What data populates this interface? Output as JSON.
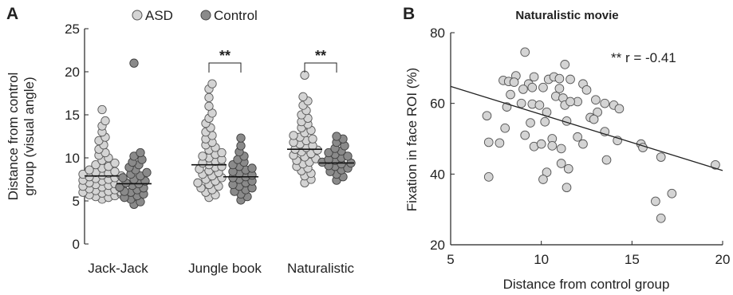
{
  "chart_data": [
    {
      "panel_label": "A",
      "type": "scatter",
      "subtype": "beeswarm",
      "ylabel_lines": [
        "Distance from control",
        "group (visual angle)"
      ],
      "ylim": [
        0,
        25
      ],
      "yticks": [
        0,
        5,
        10,
        15,
        20,
        25
      ],
      "categories": [
        "Jack-Jack",
        "Jungle book",
        "Naturalistic"
      ],
      "legend": {
        "position": "top",
        "entries": [
          {
            "label": "ASD",
            "color": "#d4d4d4"
          },
          {
            "label": "Control",
            "color": "#8a8a8a"
          }
        ]
      },
      "significance": [
        {
          "category": "Jungle book",
          "label": "**"
        },
        {
          "category": "Naturalistic",
          "label": "**"
        }
      ],
      "series": [
        {
          "name": "ASD",
          "color": "#d4d4d4",
          "median": [
            7.9,
            9.2,
            11.0
          ],
          "values": [
            [
              5.2,
              5.4,
              5.5,
              5.6,
              5.7,
              5.8,
              5.9,
              6.0,
              6.0,
              6.1,
              6.2,
              6.3,
              6.4,
              6.5,
              6.6,
              6.7,
              6.8,
              6.9,
              7.0,
              7.1,
              7.2,
              7.3,
              7.4,
              7.5,
              7.6,
              7.7,
              7.8,
              7.9,
              8.0,
              8.1,
              8.2,
              8.3,
              8.4,
              8.6,
              8.8,
              9.0,
              9.2,
              9.4,
              9.7,
              10.0,
              10.3,
              10.6,
              11.0,
              11.5,
              12.0,
              12.4,
              13.0,
              13.7,
              14.3,
              15.6
            ],
            [
              5.4,
              5.7,
              6.0,
              6.3,
              6.5,
              6.7,
              6.9,
              7.1,
              7.3,
              7.5,
              7.7,
              7.9,
              8.1,
              8.3,
              8.5,
              8.7,
              8.9,
              9.0,
              9.2,
              9.4,
              9.6,
              9.8,
              10.0,
              10.2,
              10.4,
              10.6,
              10.9,
              11.2,
              11.5,
              11.8,
              12.2,
              12.6,
              13.0,
              13.5,
              14.0,
              14.6,
              15.2,
              16.0,
              17.0,
              18.0,
              18.6
            ],
            [
              7.1,
              7.5,
              7.9,
              8.2,
              8.5,
              8.8,
              9.0,
              9.3,
              9.5,
              9.7,
              9.9,
              10.1,
              10.3,
              10.5,
              10.7,
              10.9,
              11.0,
              11.2,
              11.4,
              11.6,
              11.8,
              12.0,
              12.2,
              12.4,
              12.6,
              12.9,
              13.2,
              13.5,
              13.9,
              14.2,
              14.6,
              15.0,
              15.5,
              16.1,
              16.6,
              17.1,
              19.6
            ]
          ]
        },
        {
          "name": "Control",
          "color": "#8a8a8a",
          "median": [
            7.0,
            7.8,
            9.4
          ],
          "values": [
            [
              4.6,
              4.9,
              5.2,
              5.4,
              5.6,
              5.8,
              6.0,
              6.1,
              6.3,
              6.5,
              6.6,
              6.8,
              7.0,
              7.1,
              7.3,
              7.5,
              7.7,
              7.9,
              8.1,
              8.3,
              8.6,
              8.9,
              9.2,
              9.5,
              9.8,
              10.2,
              10.6,
              21.0
            ],
            [
              5.1,
              5.5,
              5.8,
              6.1,
              6.3,
              6.5,
              6.7,
              6.9,
              7.1,
              7.3,
              7.5,
              7.7,
              7.8,
              8.0,
              8.2,
              8.4,
              8.6,
              8.8,
              9.0,
              9.2,
              9.5,
              9.8,
              10.2,
              10.7,
              11.4,
              12.3
            ],
            [
              7.4,
              7.8,
              8.1,
              8.4,
              8.6,
              8.8,
              9.0,
              9.1,
              9.3,
              9.4,
              9.5,
              9.7,
              9.8,
              10.0,
              10.2,
              10.4,
              10.6,
              10.8,
              11.1,
              11.4,
              11.8,
              12.2,
              12.5
            ]
          ]
        }
      ]
    },
    {
      "panel_label": "B",
      "type": "scatter",
      "title": "Naturalistic movie",
      "xlabel": "Distance from control group",
      "ylabel": "Fixation in face ROI (%)",
      "xlim": [
        5,
        20
      ],
      "xticks": [
        5,
        10,
        15,
        20
      ],
      "ylim": [
        20,
        80
      ],
      "yticks": [
        20,
        40,
        60,
        80
      ],
      "annotation": "** r = -0.41",
      "point_color": "#d4d4d4",
      "fit_line": {
        "x": [
          5,
          20
        ],
        "y": [
          64.8,
          41.0
        ]
      },
      "points": [
        [
          9.1,
          74.5
        ],
        [
          11.3,
          71.0
        ],
        [
          8.6,
          67.8
        ],
        [
          9.6,
          67.5
        ],
        [
          10.4,
          66.8
        ],
        [
          10.7,
          67.5
        ],
        [
          11.0,
          67.0
        ],
        [
          11.6,
          66.8
        ],
        [
          12.3,
          65.5
        ],
        [
          7.9,
          66.5
        ],
        [
          8.2,
          66.2
        ],
        [
          8.5,
          66.0
        ],
        [
          9.3,
          65.5
        ],
        [
          9.0,
          64.0
        ],
        [
          9.5,
          64.5
        ],
        [
          10.1,
          64.5
        ],
        [
          11.0,
          64.2
        ],
        [
          12.5,
          63.8
        ],
        [
          8.3,
          62.5
        ],
        [
          10.8,
          62.0
        ],
        [
          11.2,
          61.5
        ],
        [
          12.0,
          60.5
        ],
        [
          13.0,
          61.0
        ],
        [
          13.5,
          60.0
        ],
        [
          14.0,
          59.5
        ],
        [
          14.3,
          58.5
        ],
        [
          8.1,
          59.0
        ],
        [
          8.9,
          60.0
        ],
        [
          9.5,
          59.8
        ],
        [
          9.9,
          59.5
        ],
        [
          10.3,
          57.5
        ],
        [
          11.3,
          59.5
        ],
        [
          11.6,
          60.5
        ],
        [
          13.1,
          57.5
        ],
        [
          7.0,
          56.5
        ],
        [
          8.0,
          53.0
        ],
        [
          9.4,
          54.5
        ],
        [
          10.2,
          54.8
        ],
        [
          11.4,
          55.0
        ],
        [
          12.7,
          56.0
        ],
        [
          12.9,
          55.5
        ],
        [
          9.1,
          51.0
        ],
        [
          10.6,
          50.0
        ],
        [
          12.0,
          50.5
        ],
        [
          12.3,
          48.5
        ],
        [
          13.5,
          52.0
        ],
        [
          14.2,
          49.5
        ],
        [
          7.1,
          49.0
        ],
        [
          7.7,
          48.8
        ],
        [
          9.6,
          47.8
        ],
        [
          10.0,
          48.5
        ],
        [
          10.6,
          48.0
        ],
        [
          11.1,
          47.2
        ],
        [
          15.5,
          48.5
        ],
        [
          15.6,
          47.5
        ],
        [
          10.3,
          40.5
        ],
        [
          11.1,
          43.0
        ],
        [
          11.5,
          41.5
        ],
        [
          13.6,
          44.0
        ],
        [
          16.6,
          44.8
        ],
        [
          19.6,
          42.6
        ],
        [
          7.1,
          39.2
        ],
        [
          10.1,
          38.5
        ],
        [
          11.4,
          36.2
        ],
        [
          16.3,
          32.3
        ],
        [
          17.2,
          34.5
        ],
        [
          16.6,
          27.5
        ]
      ]
    }
  ]
}
